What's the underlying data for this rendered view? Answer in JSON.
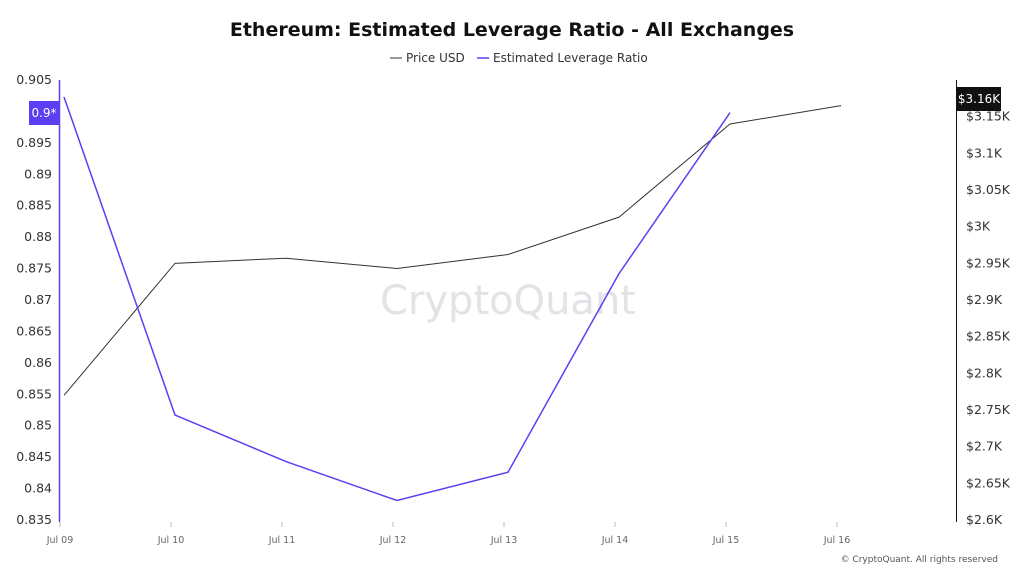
{
  "chart_data": {
    "type": "line",
    "title": "Ethereum: Estimated Leverage Ratio - All Exchanges",
    "x": [
      "Jul 09",
      "Jul 10",
      "Jul 11",
      "Jul 12",
      "Jul 13",
      "Jul 14",
      "Jul 15",
      "Jul 16"
    ],
    "series": [
      {
        "name": "Price USD",
        "axis": "right",
        "color": "#333333",
        "values": [
          2770,
          2950,
          2957,
          2943,
          2962,
          3013,
          3140,
          3165
        ]
      },
      {
        "name": "Estimated Leverage Ratio",
        "axis": "left",
        "color": "#5b3ff2",
        "values": [
          0.9023,
          0.8517,
          0.8443,
          0.8381,
          0.8426,
          0.8742,
          0.8998,
          null
        ]
      }
    ],
    "y_left": {
      "min": 0.835,
      "max": 0.905,
      "ticks": [
        0.905,
        0.9,
        0.895,
        0.89,
        0.885,
        0.88,
        0.875,
        0.87,
        0.865,
        0.86,
        0.855,
        0.85,
        0.845,
        0.84,
        0.835
      ],
      "tick_labels": [
        "0.905",
        "0.9",
        "0.895",
        "0.89",
        "0.885",
        "0.88",
        "0.875",
        "0.87",
        "0.865",
        "0.86",
        "0.855",
        "0.85",
        "0.845",
        "0.84",
        "0.835"
      ]
    },
    "y_right": {
      "min": 2600,
      "max": 3200,
      "ticks": [
        3150,
        3100,
        3050,
        3000,
        2950,
        2900,
        2850,
        2800,
        2750,
        2700,
        2650,
        2600
      ],
      "tick_labels": [
        "$3.15K",
        "$3.1K",
        "$3.05K",
        "$3K",
        "$2.95K",
        "$2.9K",
        "$2.85K",
        "$2.8K",
        "$2.75K",
        "$2.7K",
        "$2.65K",
        "$2.6K"
      ]
    },
    "current_value_badges": {
      "left": {
        "label": "0.9*",
        "color": "#5b3ff2"
      },
      "right": {
        "label": "$3.16K",
        "color": "#111111"
      }
    },
    "grid": false,
    "legend": "top-center"
  },
  "watermark": "CryptoQuant",
  "copyright": "© CryptoQuant. All rights reserved"
}
